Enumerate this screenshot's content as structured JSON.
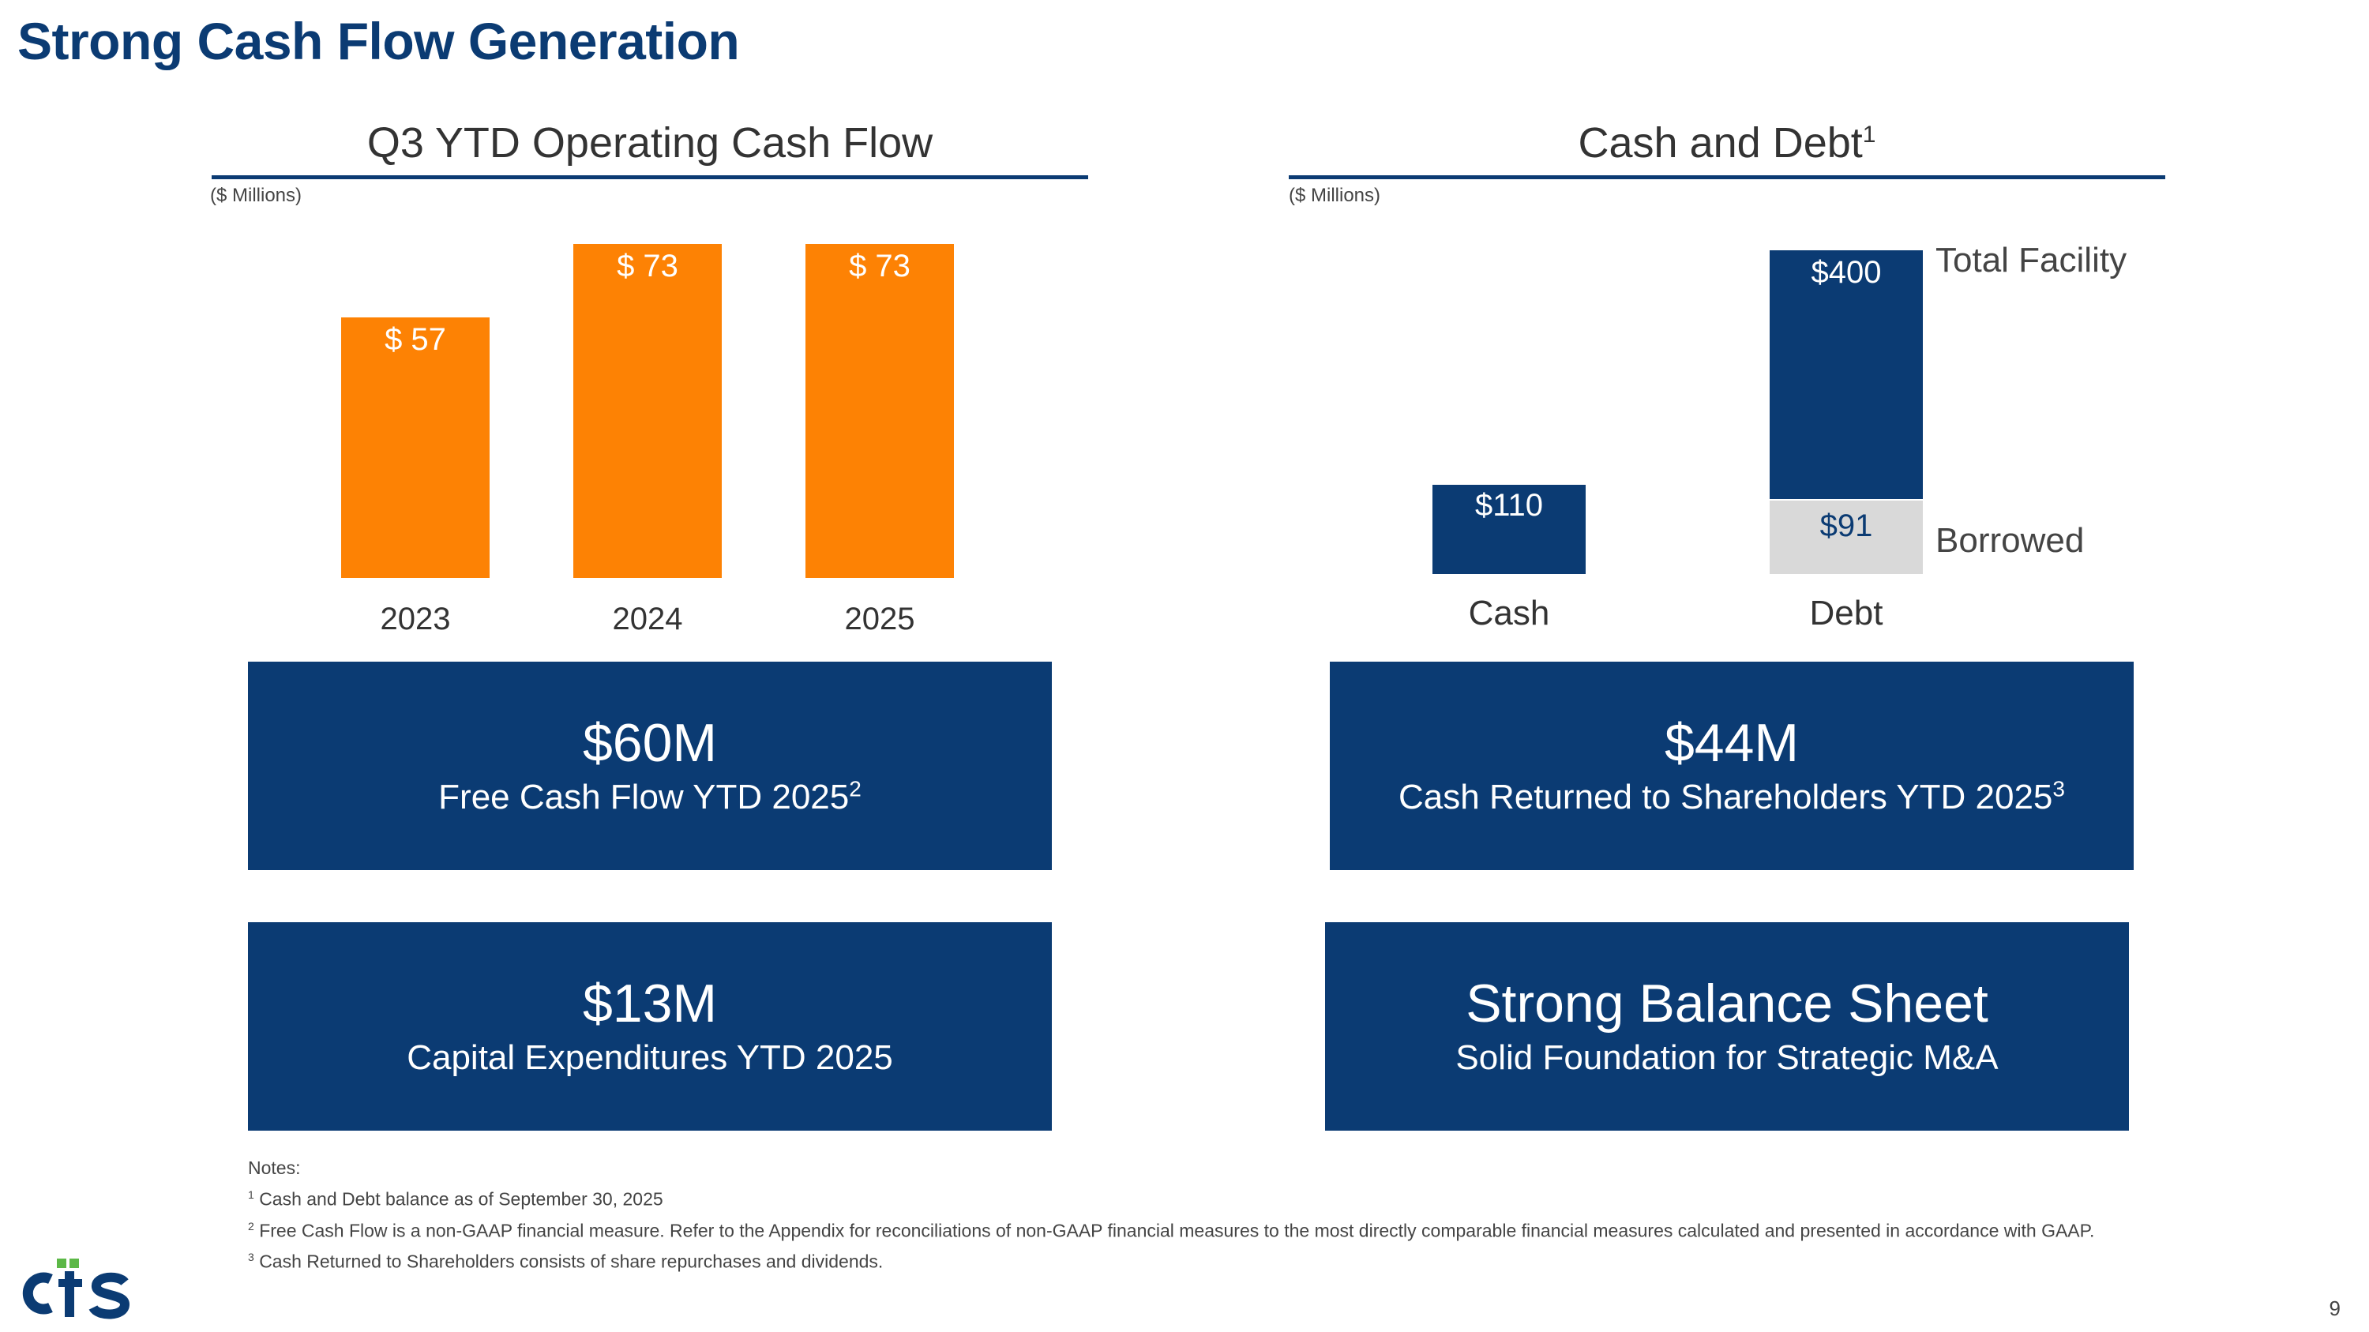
{
  "title": "Strong Cash Flow Generation",
  "chart_data": [
    {
      "type": "bar",
      "title": "Q3 YTD Operating Cash Flow",
      "units": "($ Millions)",
      "categories": [
        "2023",
        "2024",
        "2025"
      ],
      "values": [
        57,
        73,
        73
      ],
      "value_labels": [
        "$ 57",
        "$ 73",
        "$ 73"
      ],
      "ylim": [
        0,
        73
      ],
      "color": "#fd8204",
      "xlabel": "",
      "ylabel": "",
      "grid": false
    },
    {
      "type": "bar",
      "title": "Cash and Debt",
      "title_footnote": "1",
      "units": "($ Millions)",
      "categories": [
        "Cash",
        "Debt"
      ],
      "ylim": [
        0,
        400
      ],
      "xlabel": "",
      "ylabel": "",
      "grid": false,
      "series": [
        {
          "name": "Cash",
          "category": "Cash",
          "value": 110,
          "label": "$110",
          "color": "#0b3b73"
        },
        {
          "name": "Borrowed",
          "category": "Debt",
          "value": 91,
          "label": "$91",
          "color": "#d9d9d9"
        },
        {
          "name": "Total Facility",
          "category": "Debt",
          "value": 400,
          "label": "$400",
          "color": "#0b3b73"
        }
      ],
      "legend_labels": {
        "total": "Total Facility",
        "borrowed": "Borrowed"
      }
    }
  ],
  "stats": {
    "fcf": {
      "value": "$60M",
      "desc": "Free Cash Flow YTD 2025",
      "footnote": "2"
    },
    "returned": {
      "value": "$44M",
      "desc": "Cash Returned to Shareholders YTD 2025",
      "footnote": "3"
    },
    "capex": {
      "value": "$13M",
      "desc": "Capital Expenditures YTD 2025"
    },
    "balance": {
      "value": "Strong Balance Sheet",
      "desc": "Solid Foundation for Strategic M&A"
    }
  },
  "notes": {
    "heading": "Notes:",
    "items": [
      {
        "num": "1",
        "text": "Cash and Debt balance as of September 30, 2025"
      },
      {
        "num": "2",
        "text": "Free Cash Flow is a non-GAAP financial measure. Refer to the Appendix for reconciliations of non-GAAP financial measures to the most directly comparable financial measures calculated and presented in accordance with GAAP."
      },
      {
        "num": "3",
        "text": "Cash Returned to Shareholders consists of share repurchases and dividends."
      }
    ]
  },
  "logo": {
    "text": "CTS",
    "color_primary": "#0b3b73",
    "color_accent": "#5cb847"
  },
  "page_number": "9",
  "colors": {
    "navy": "#0b3b73",
    "orange": "#fd8204",
    "gray": "#d9d9d9"
  }
}
